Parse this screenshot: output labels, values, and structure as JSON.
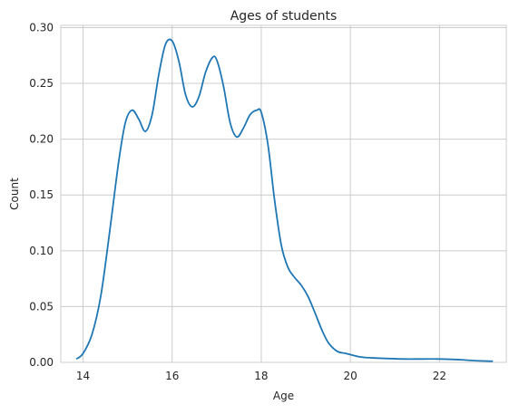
{
  "chart_data": {
    "type": "line",
    "title": "Ages of students",
    "xlabel": "Age",
    "ylabel": "Count",
    "xlim": [
      13.5,
      23.5
    ],
    "ylim": [
      0,
      0.302
    ],
    "xticks": [
      14,
      16,
      18,
      20,
      22
    ],
    "xtick_labels": [
      "14",
      "16",
      "18",
      "20",
      "22"
    ],
    "yticks": [
      0,
      0.05,
      0.1,
      0.15,
      0.2,
      0.25,
      0.3
    ],
    "ytick_labels": [
      "0.00",
      "0.05",
      "0.10",
      "0.15",
      "0.20",
      "0.25",
      "0.30"
    ],
    "grid": true,
    "series": [
      {
        "color": "#1f77b4",
        "x": [
          13.85,
          14.0,
          14.2,
          14.4,
          14.6,
          14.8,
          14.95,
          15.1,
          15.25,
          15.4,
          15.55,
          15.7,
          15.85,
          16.0,
          16.15,
          16.3,
          16.45,
          16.6,
          16.75,
          16.9,
          17.0,
          17.15,
          17.3,
          17.45,
          17.6,
          17.75,
          17.9,
          18.0,
          18.15,
          18.3,
          18.45,
          18.6,
          18.75,
          18.9,
          19.05,
          19.2,
          19.35,
          19.5,
          19.7,
          19.9,
          20.2,
          20.5,
          20.8,
          21.2,
          21.6,
          22.0,
          22.4,
          22.8,
          23.2
        ],
        "y": [
          0.003,
          0.008,
          0.025,
          0.06,
          0.118,
          0.18,
          0.215,
          0.226,
          0.218,
          0.207,
          0.222,
          0.258,
          0.285,
          0.288,
          0.27,
          0.24,
          0.229,
          0.238,
          0.26,
          0.273,
          0.271,
          0.248,
          0.215,
          0.202,
          0.21,
          0.222,
          0.226,
          0.224,
          0.195,
          0.145,
          0.105,
          0.085,
          0.076,
          0.069,
          0.059,
          0.045,
          0.03,
          0.018,
          0.01,
          0.008,
          0.005,
          0.004,
          0.0035,
          0.003,
          0.003,
          0.003,
          0.0025,
          0.0015,
          0.001
        ]
      }
    ]
  }
}
